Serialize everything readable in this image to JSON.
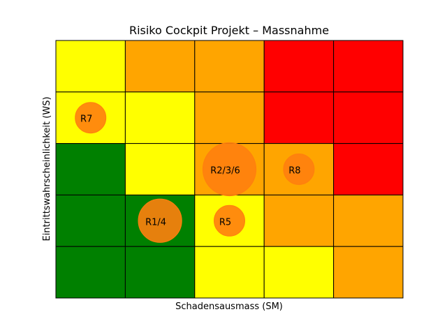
{
  "chart_data": {
    "type": "heatmap",
    "title": "Risiko Cockpit Projekt – Massnahme",
    "xlabel": "Schadensausmass (SM)",
    "ylabel": "Eintrittswahrscheinlichkeit (WS)",
    "xlim": [
      0,
      5
    ],
    "ylim": [
      0,
      5
    ],
    "grid_size": [
      5,
      5
    ],
    "colors": {
      "G": "#008000",
      "Y": "#ffff00",
      "O": "#ffa500",
      "R": "#ff0000"
    },
    "grid_rows_top_to_bottom": [
      [
        "Y",
        "O",
        "O",
        "R",
        "R"
      ],
      [
        "Y",
        "Y",
        "O",
        "R",
        "R"
      ],
      [
        "G",
        "Y",
        "O",
        "O",
        "R"
      ],
      [
        "G",
        "G",
        "Y",
        "O",
        "O"
      ],
      [
        "G",
        "G",
        "Y",
        "Y",
        "O"
      ]
    ],
    "bubble_color": "#ff7f0e",
    "bubbles": [
      {
        "label": "R7",
        "x": 0.5,
        "y": 3.5,
        "count": 1
      },
      {
        "label": "R2/3/6",
        "x": 2.5,
        "y": 2.5,
        "count": 3
      },
      {
        "label": "R8",
        "x": 3.5,
        "y": 2.5,
        "count": 1
      },
      {
        "label": "R1/4",
        "x": 1.5,
        "y": 1.5,
        "count": 2
      },
      {
        "label": "R5",
        "x": 2.5,
        "y": 1.5,
        "count": 1
      }
    ]
  }
}
